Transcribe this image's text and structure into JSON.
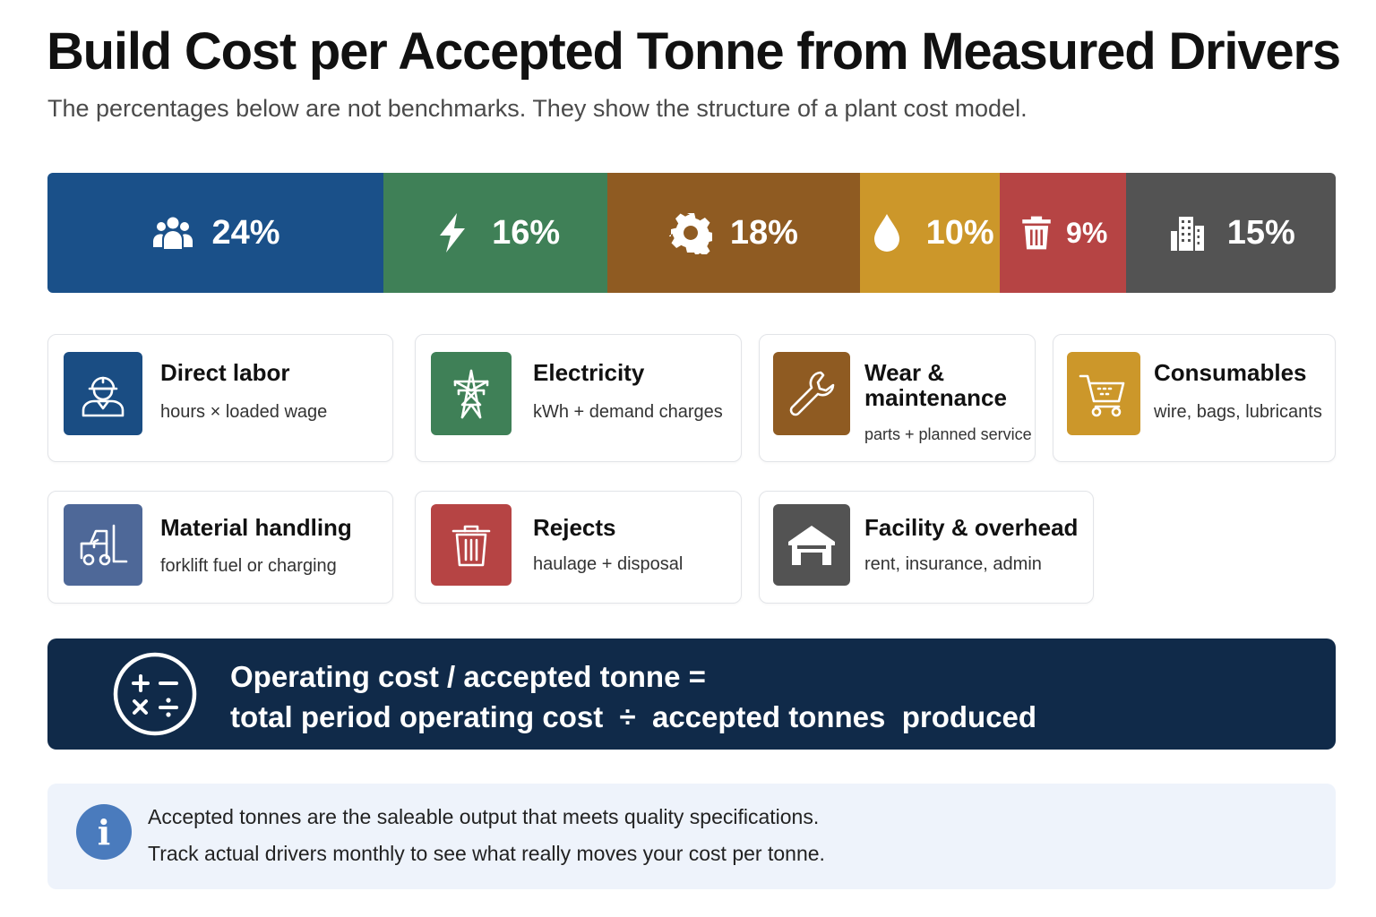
{
  "title": "Build Cost per Accepted Tonne from Measured Drivers",
  "subtitle": "The percentages below are not benchmarks. They show the structure of a plant cost model.",
  "breakdown": [
    {
      "key": "labor",
      "value": 24,
      "label": "24%",
      "color": "#1a5089",
      "icon": "people-icon"
    },
    {
      "key": "electricity",
      "value": 16,
      "label": "16%",
      "color": "#3f8057",
      "icon": "lightning-icon"
    },
    {
      "key": "wear",
      "value": 18,
      "label": "18%",
      "color": "#8f5b22",
      "icon": "gear-icon"
    },
    {
      "key": "consumables",
      "value": 10,
      "label": "10%",
      "color": "#cc972a",
      "icon": "droplet-icon"
    },
    {
      "key": "rejects",
      "value": 9,
      "label": "9%",
      "color": "#b64444",
      "icon": "trash-icon"
    },
    {
      "key": "facility",
      "value": 15,
      "label": "15%",
      "color": "#535353",
      "icon": "building-icon"
    }
  ],
  "cards": {
    "labor": {
      "title": "Direct labor",
      "desc": "hours × loaded wage",
      "color": "#1a4d83",
      "icon": "worker-icon"
    },
    "electricity": {
      "title": "Electricity",
      "desc": "kWh + demand charges",
      "color": "#3f8057",
      "icon": "power-tower-icon"
    },
    "wear_line1": "Wear &",
    "wear_line2": "maintenance",
    "wear": {
      "desc": "parts + planned service",
      "color": "#8f5b22",
      "icon": "wrench-icon"
    },
    "consumables": {
      "title": "Consumables",
      "desc": "wire, bags, lubricants",
      "color": "#cc972a",
      "icon": "cart-icon"
    },
    "handling": {
      "title": "Material handling",
      "desc": "forklift fuel or charging",
      "color": "#4e6898",
      "icon": "forklift-icon"
    },
    "rejects": {
      "title": "Rejects",
      "desc": "haulage + disposal",
      "color": "#b64444",
      "icon": "trash-icon"
    },
    "facility": {
      "title": "Facility & overhead",
      "desc": "rent, insurance, admin",
      "color": "#535353",
      "icon": "warehouse-icon"
    }
  },
  "formula": {
    "line1": "Operating cost / accepted tonne =",
    "line2": "total period operating cost  ÷  accepted tonnes  produced",
    "icon": "calculator-icon"
  },
  "info": {
    "line1": "Accepted tonnes are the saleable output that meets quality specifications.",
    "line2": "Track actual drivers monthly to see what really moves your cost per tonne.",
    "icon": "info-icon"
  }
}
